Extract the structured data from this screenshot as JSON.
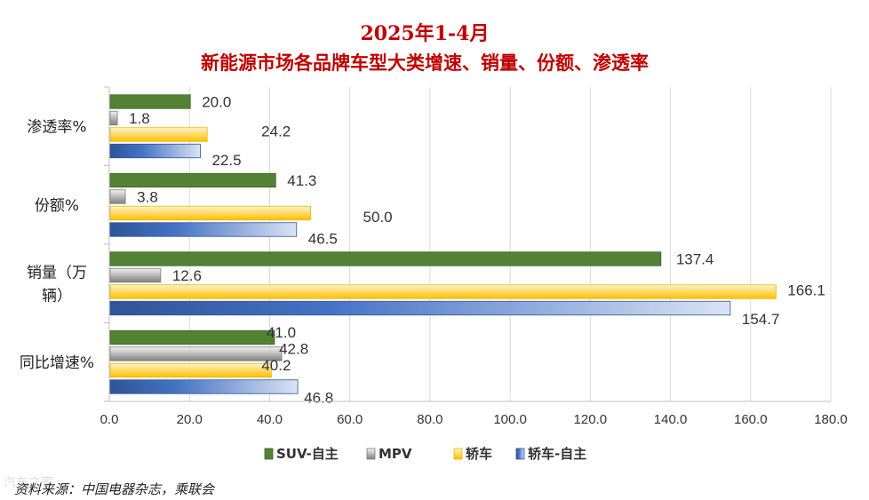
{
  "chart_data": {
    "type": "bar",
    "orientation": "horizontal",
    "title": "2025年1-4月",
    "subtitle": "新能源市场各品牌车型大类增速、销量、份额、渗透率",
    "categories": [
      "渗透率%",
      "份额%",
      "销量（万辆）",
      "同比增速%"
    ],
    "category_lines": [
      [
        "渗透率%"
      ],
      [
        "份额%"
      ],
      [
        "销量（万",
        "辆）"
      ],
      [
        "同比增速%"
      ]
    ],
    "series": [
      {
        "name": "SUV-自主",
        "values": [
          20.0,
          41.3,
          137.4,
          41.0
        ],
        "labels": [
          "20.0",
          "41.3",
          "137.4",
          "41.0"
        ],
        "color": "#548235"
      },
      {
        "name": "MPV",
        "values": [
          1.8,
          3.8,
          12.6,
          42.8
        ],
        "labels": [
          "1.8",
          "3.8",
          "12.6",
          "42.8"
        ],
        "color": "#a6a6a6"
      },
      {
        "name": "轿车",
        "values": [
          24.2,
          50.0,
          166.1,
          40.2
        ],
        "labels": [
          "24.2",
          "50.0",
          "166.1",
          "40.2"
        ],
        "color": "#ffd966"
      },
      {
        "name": "轿车-自主",
        "values": [
          22.5,
          46.5,
          154.7,
          46.8
        ],
        "labels": [
          "22.5",
          "46.5",
          "154.7",
          "46.8"
        ],
        "color": "#4472c4"
      }
    ],
    "xlim": [
      0,
      180
    ],
    "xticks": [
      0,
      20,
      40,
      60,
      80,
      100,
      120,
      140,
      160,
      180
    ],
    "xtick_labels": [
      "0.0",
      "20.0",
      "40.0",
      "60.0",
      "80.0",
      "100.0",
      "120.0",
      "140.0",
      "160.0",
      "180.0"
    ],
    "grid": true,
    "legend_position": "bottom"
  },
  "source": "资料来源：中国电器杂志，乘联会",
  "watermark": "汽车之家"
}
